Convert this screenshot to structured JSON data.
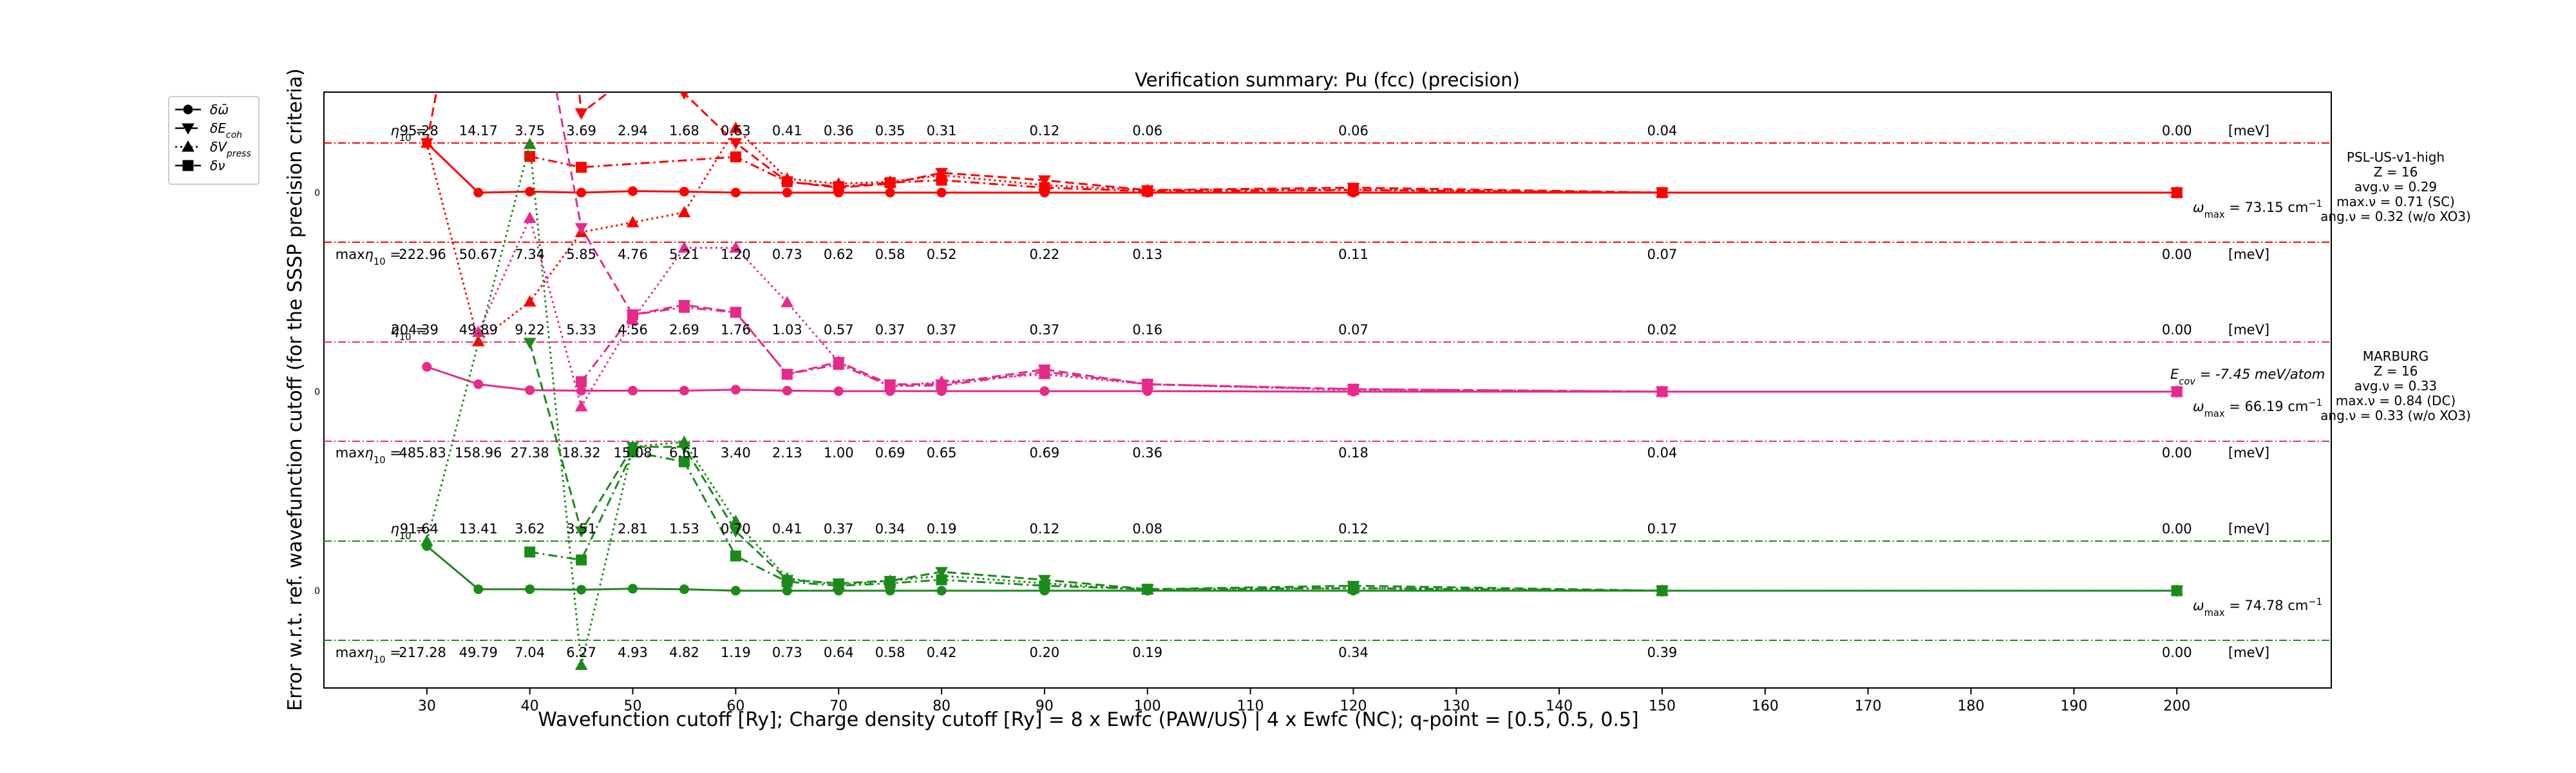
{
  "chart_data": {
    "type": "line",
    "title": "Verification summary: Pu (fcc) (precision)",
    "xlabel": "Wavefunction cutoff [Ry]; Charge density cutoff [Ry] = 8 x Ewfc (PAW/US) | 4 x Ewfc (NC); q-point = [0.5, 0.5, 0.5]",
    "ylabel": "Error w.r.t. ref. wavefunction cutoff (for the SSSP precision criteria)",
    "xlim": [
      20,
      215
    ],
    "xticks": [
      30,
      40,
      50,
      60,
      70,
      80,
      90,
      100,
      110,
      120,
      130,
      140,
      150,
      160,
      170,
      180,
      190,
      200
    ],
    "grid": false,
    "legend_position": "upper-left (outside plot)",
    "legend": [
      {
        "label": "δω̄",
        "linestyle": "solid",
        "marker": "circle"
      },
      {
        "label": "δE_coh",
        "linestyle": "dashed",
        "marker": "triangle-down"
      },
      {
        "label": "δV_press",
        "linestyle": "dotted",
        "marker": "triangle-up"
      },
      {
        "label": "δν",
        "linestyle": "dashdot",
        "marker": "square"
      }
    ],
    "x": [
      30,
      35,
      40,
      45,
      50,
      55,
      60,
      65,
      70,
      75,
      80,
      90,
      100,
      120,
      150,
      200
    ],
    "row_label_prefix": "η₁₀ =",
    "row_label_max_prefix": "maxη₁₀ =",
    "unit": "[meV]",
    "ytick": "0",
    "pseudopotentials": [
      {
        "name": "PSL-US-v1-high",
        "color": "#ff0000",
        "info": [
          "PSL-US-v1-high",
          "Z = 16",
          "avg.ν = 0.29",
          "max.ν = 0.71 (SC)",
          "ang.ν = 0.32 (w/o XO3)"
        ],
        "omega_max": "ω_max = 73.15 cm⁻¹",
        "ecov": "",
        "eta10": [
          "95.28",
          "14.17",
          "3.75",
          "3.69",
          "2.94",
          "1.68",
          "0.63",
          "0.41",
          "0.36",
          "0.35",
          "0.31",
          "0.12",
          "0.06",
          "0.06",
          "0.04",
          "0.00"
        ],
        "max_eta10": [
          "222.96",
          "50.67",
          "7.34",
          "5.85",
          "4.76",
          "5.21",
          "1.20",
          "0.73",
          "0.62",
          "0.58",
          "0.52",
          "0.22",
          "0.13",
          "0.11",
          "0.07",
          "0.00"
        ],
        "series": {
          "omega": [
            1.0,
            0.0,
            0.02,
            0.0,
            0.03,
            0.02,
            0.0,
            0.0,
            0.0,
            0.0,
            0.0,
            0.0,
            0.0,
            0.0,
            0.0,
            0.0
          ],
          "ecoh": [
            1.0,
            null,
            12.0,
            1.6,
            2.4,
            2.0,
            1.0,
            0.22,
            0.1,
            0.18,
            0.4,
            0.25,
            0.05,
            0.1,
            0.0,
            0.0
          ],
          "vpress": [
            1.0,
            -3.0,
            -2.2,
            -0.8,
            -0.6,
            -0.4,
            1.3,
            0.28,
            0.18,
            0.22,
            0.35,
            0.15,
            0.05,
            0.06,
            0.0,
            0.0
          ],
          "nu": [
            null,
            null,
            0.73,
            0.51,
            null,
            null,
            0.72,
            0.22,
            0.12,
            0.2,
            0.25,
            0.1,
            0.03,
            0.05,
            0.0,
            0.0
          ]
        }
      },
      {
        "name": "MARBURG",
        "color": "#e7298a",
        "info": [
          "MARBURG",
          "Z = 16",
          "avg.ν = 0.33",
          "max.ν = 0.84 (DC)",
          "ang.ν = 0.33 (w/o XO3)"
        ],
        "omega_max": "ω_max = 66.19 cm⁻¹",
        "ecov": "E_cov = -7.45 meV/atom",
        "eta10": [
          "204.39",
          "49.89",
          "9.22",
          "5.33",
          "4.56",
          "2.69",
          "1.76",
          "1.03",
          "0.57",
          "0.37",
          "0.37",
          "0.37",
          "0.16",
          "0.07",
          "0.02",
          "0.00"
        ],
        "max_eta10": [
          "485.83",
          "158.96",
          "27.38",
          "18.32",
          "15.08",
          "6.61",
          "3.40",
          "2.13",
          "1.00",
          "0.69",
          "0.65",
          "0.69",
          "0.36",
          "0.18",
          "0.04",
          "0.00"
        ],
        "series": {
          "omega": [
            0.5,
            0.15,
            0.03,
            0.02,
            0.02,
            0.02,
            0.04,
            0.02,
            0.01,
            0.01,
            0.01,
            0.01,
            0.01,
            0.0,
            0.0,
            0.0
          ],
          "ecoh": [
            null,
            null,
            9.0,
            3.3,
            1.55,
            1.75,
            1.6,
            0.35,
            0.6,
            0.15,
            0.15,
            0.45,
            0.15,
            0.05,
            0.0,
            0.0
          ],
          "vpress": [
            null,
            1.2,
            3.5,
            -0.3,
            1.45,
            2.9,
            2.9,
            1.8,
            0.6,
            0.1,
            0.2,
            0.35,
            0.15,
            0.03,
            0.0,
            0.0
          ],
          "nu": [
            null,
            null,
            null,
            0.2,
            1.55,
            1.7,
            1.6,
            0.35,
            0.55,
            0.12,
            0.12,
            0.4,
            0.15,
            0.05,
            0.0,
            0.0
          ]
        }
      },
      {
        "name": "",
        "color": "#1b8a1b",
        "info": [],
        "omega_max": "ω_max = 74.78 cm⁻¹",
        "ecov": "",
        "eta10": [
          "91.64",
          "13.41",
          "3.62",
          "3.51",
          "2.81",
          "1.53",
          "0.70",
          "0.41",
          "0.37",
          "0.34",
          "0.19",
          "0.12",
          "0.08",
          "0.12",
          "0.17",
          "0.00"
        ],
        "max_eta10": [
          "217.28",
          "49.79",
          "7.04",
          "6.27",
          "4.93",
          "4.82",
          "1.19",
          "0.73",
          "0.64",
          "0.58",
          "0.42",
          "0.20",
          "0.19",
          "0.34",
          "0.39",
          "0.00"
        ],
        "series": {
          "omega": [
            0.9,
            0.03,
            0.03,
            0.02,
            0.04,
            0.03,
            0.0,
            0.0,
            0.0,
            0.0,
            0.0,
            0.0,
            0.0,
            0.0,
            0.0,
            0.0
          ],
          "ecoh": [
            null,
            null,
            5.0,
            1.2,
            2.9,
            2.9,
            1.2,
            0.22,
            0.15,
            0.2,
            0.38,
            0.22,
            0.03,
            0.1,
            0.0,
            0.0
          ],
          "vpress": [
            1.0,
            null,
            9.0,
            -1.5,
            2.9,
            3.0,
            1.4,
            0.25,
            0.12,
            0.2,
            0.3,
            0.15,
            0.02,
            0.05,
            0.0,
            0.0
          ],
          "nu": [
            null,
            null,
            0.78,
            0.62,
            2.8,
            2.6,
            0.7,
            0.18,
            0.1,
            0.15,
            0.22,
            0.1,
            0.03,
            0.05,
            0.0,
            0.0
          ]
        }
      }
    ]
  }
}
